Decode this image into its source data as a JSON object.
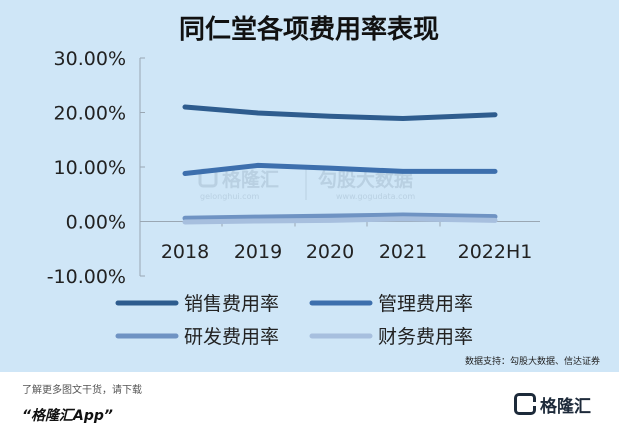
{
  "chart_data": {
    "type": "line",
    "title": "同仁堂各项费用率表现",
    "categories": [
      "2018",
      "2019",
      "2020",
      "2021",
      "2022H1"
    ],
    "y_tick_labels": [
      "30.00%",
      "20.00%",
      "10.00%",
      "0.00%",
      "-10.00%"
    ],
    "ylim": [
      -10,
      30
    ],
    "y_unit": "%",
    "grid": false,
    "legend_position": "bottom",
    "series": [
      {
        "name": "销售费用率",
        "color": "#2e5c8e",
        "values": [
          21.0,
          19.9,
          19.3,
          18.9,
          19.6
        ]
      },
      {
        "name": "管理费用率",
        "color": "#3d6fad",
        "values": [
          8.8,
          10.3,
          9.8,
          9.2,
          9.2
        ]
      },
      {
        "name": "研发费用率",
        "color": "#6f93c3",
        "values": [
          0.6,
          0.8,
          1.0,
          1.2,
          0.9
        ]
      },
      {
        "name": "财务费用率",
        "color": "#a7bfde",
        "values": [
          -0.1,
          0.1,
          0.2,
          0.5,
          0.2
        ]
      }
    ],
    "source_note": "数据支持：勾股大数据、信达证券"
  },
  "watermark": {
    "logo_text": "格隆汇",
    "logo_domain": "gelonghui.com",
    "partner_text": "勾股大数据",
    "partner_domain": "www.gogudata.com"
  },
  "footer": {
    "note": "了解更多图文干货，请下载",
    "app": "“格隆汇App”",
    "logo_text": "格隆汇"
  }
}
